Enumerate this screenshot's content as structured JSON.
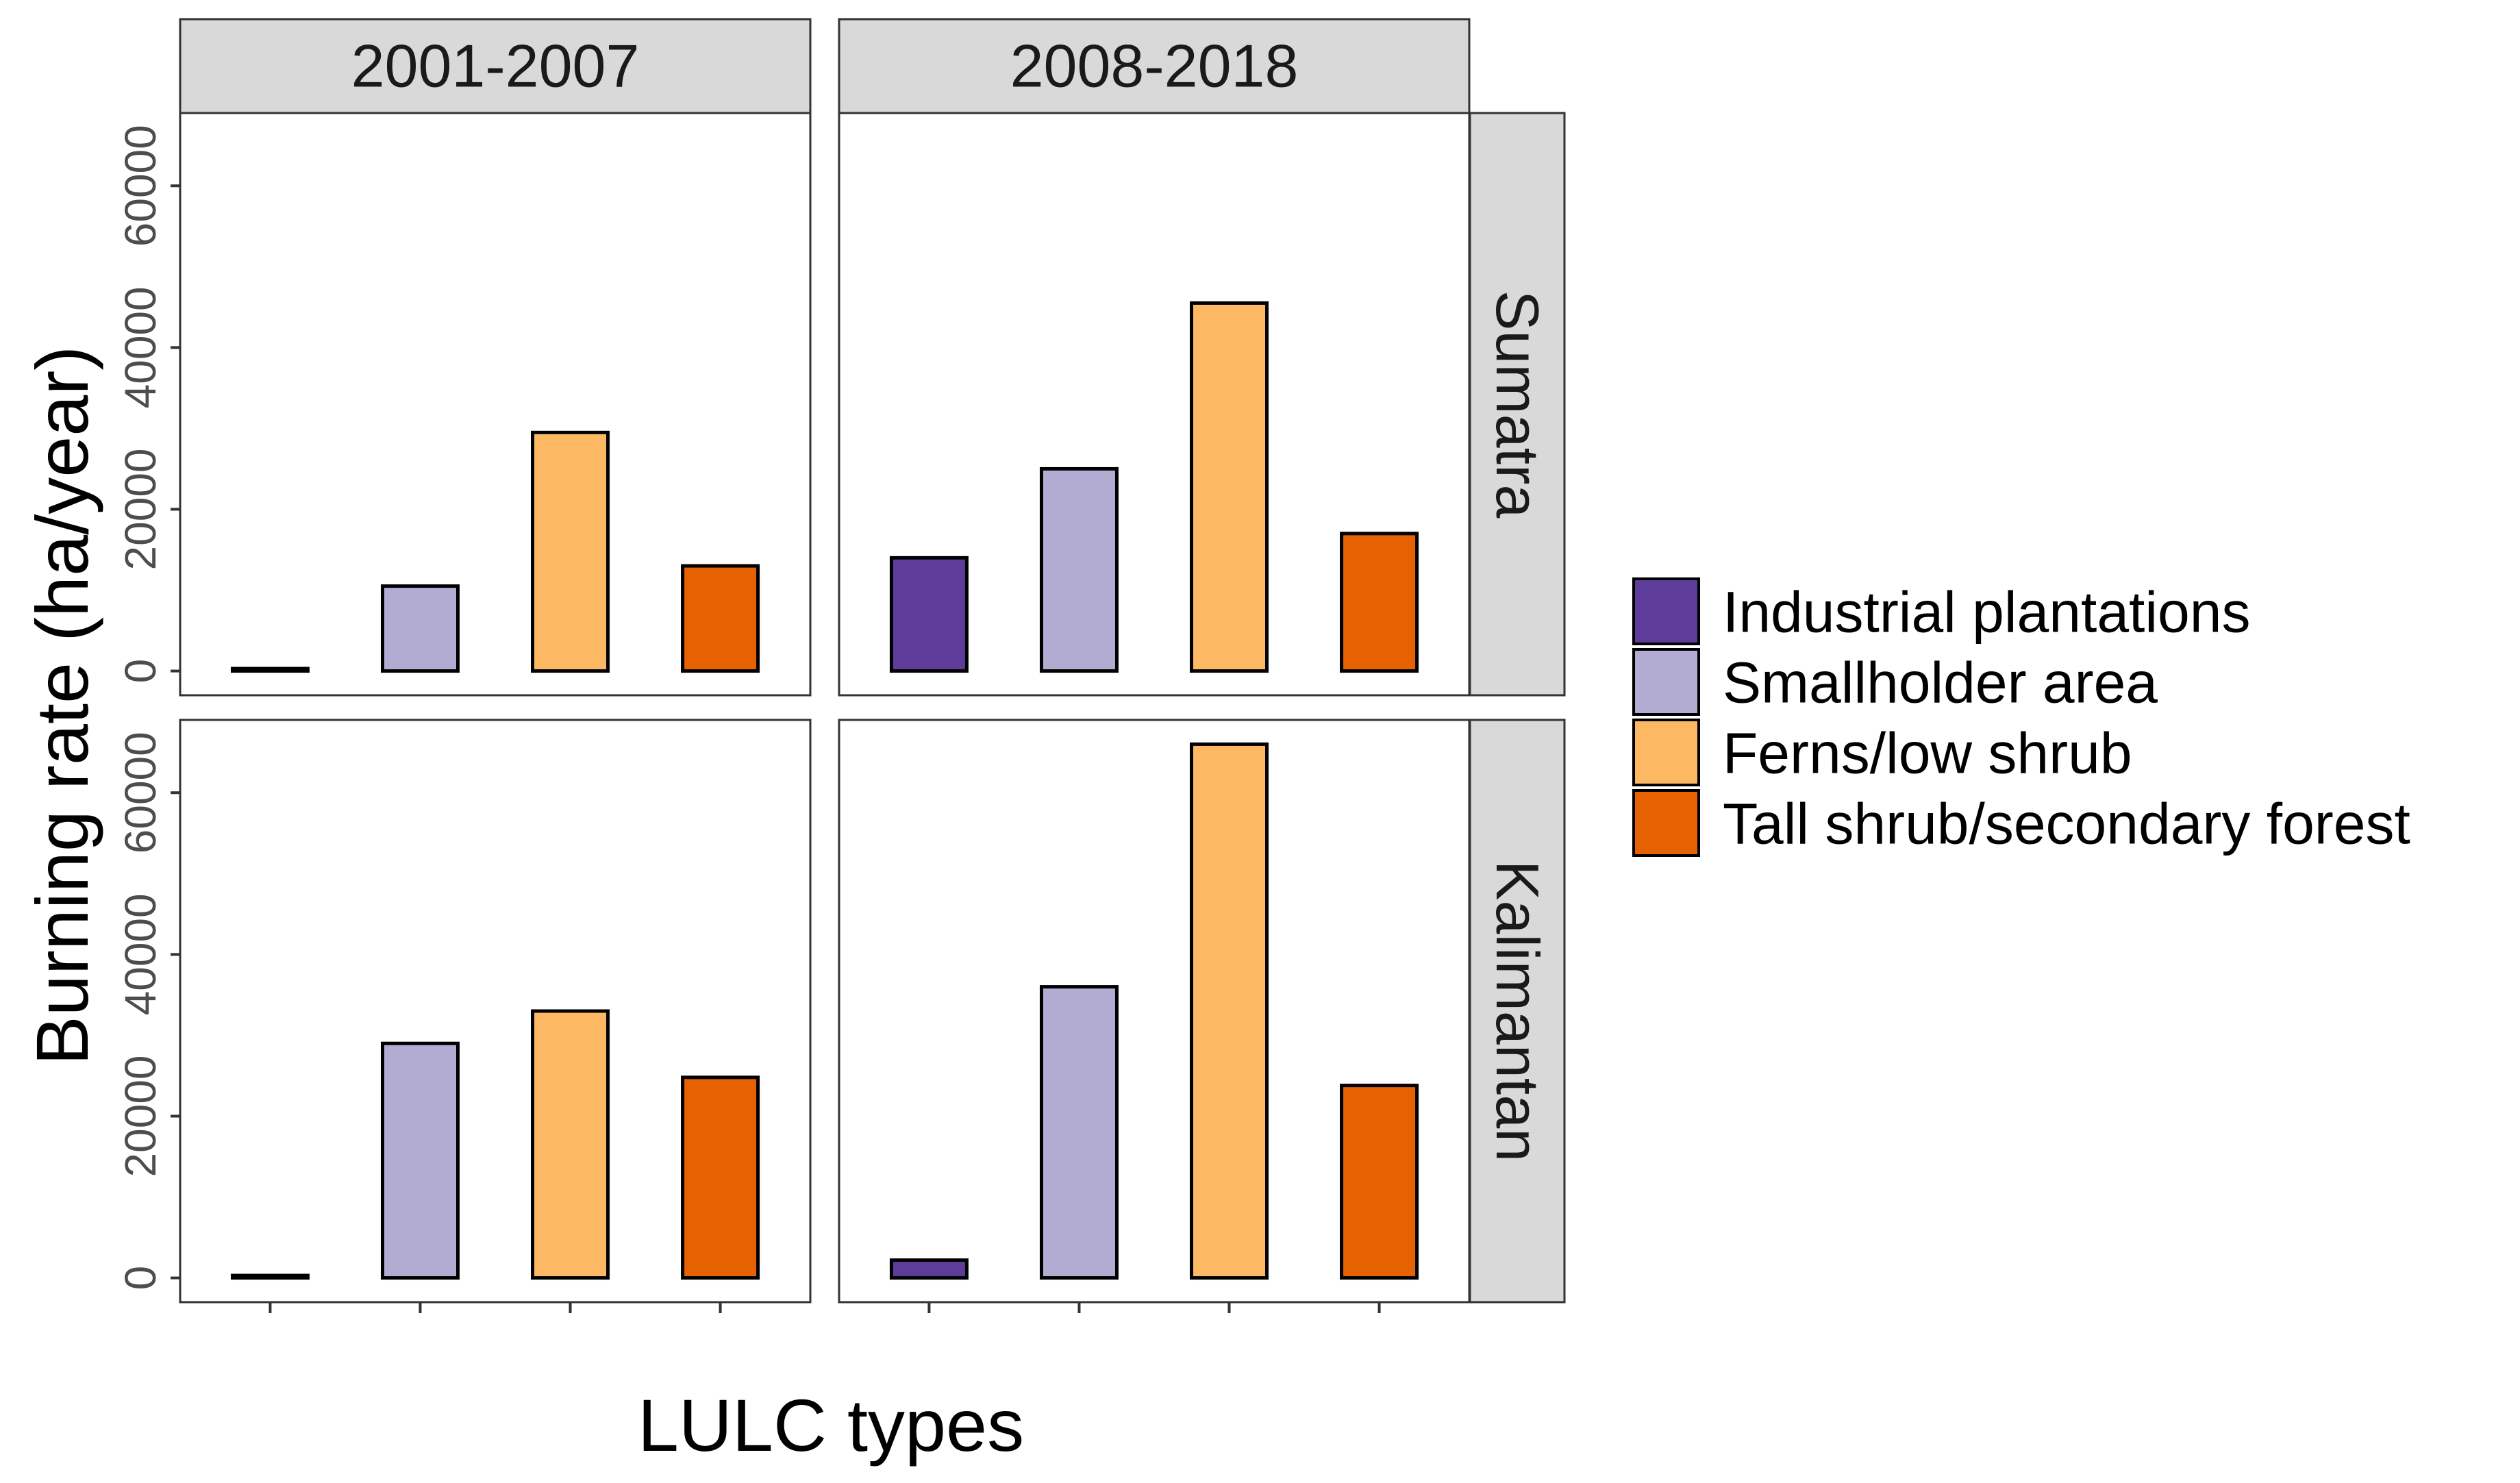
{
  "chart_data": {
    "type": "bar",
    "facet_columns": [
      "2001-2007",
      "2008-2018"
    ],
    "facet_rows": [
      "Sumatra",
      "Kalimantan"
    ],
    "categories": [
      "Industrial plantations",
      "Smallholder area",
      "Ferns/low shrub",
      "Tall shrub/secondary forest"
    ],
    "colors": [
      "#5e3c99",
      "#b2abd2",
      "#fdb863",
      "#e66101"
    ],
    "panels": [
      {
        "row": "Sumatra",
        "col": "2001-2007",
        "values": [
          300,
          10500,
          29500,
          13000
        ]
      },
      {
        "row": "Sumatra",
        "col": "2008-2018",
        "values": [
          14000,
          25000,
          45500,
          17000
        ]
      },
      {
        "row": "Kalimantan",
        "col": "2001-2007",
        "values": [
          300,
          29000,
          33000,
          24800
        ]
      },
      {
        "row": "Kalimantan",
        "col": "2008-2018",
        "values": [
          2200,
          36000,
          66000,
          23800
        ]
      }
    ],
    "yticks": [
      0,
      20000,
      40000,
      60000
    ],
    "ylim": [
      -3000,
      69000
    ],
    "ylabel": "Burning rate (ha/year)",
    "xlabel": "LULC types",
    "legend_position": "right"
  }
}
